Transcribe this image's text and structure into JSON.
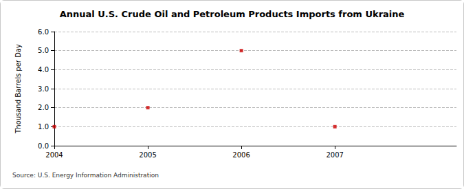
{
  "chart_data": {
    "type": "scatter",
    "title": "Annual U.S. Crude Oil and Petroleum Products Imports from Ukraine",
    "y_label": "Thousand Barrels per Day",
    "source": "Source: U.S. Energy Information Administration",
    "x": [
      2004,
      2005,
      2006,
      2007
    ],
    "values": [
      1,
      2,
      5,
      1
    ],
    "color": "#cc0000",
    "marker": "square",
    "xlim": [
      2004,
      2008.3
    ],
    "xticks": [
      2004,
      2005,
      2006,
      2007
    ],
    "ylim": [
      0,
      6
    ],
    "yticks": [
      {
        "value": 0,
        "label": "0.0"
      },
      {
        "value": 1,
        "label": "1.0"
      },
      {
        "value": 2,
        "label": "2.0"
      },
      {
        "value": 3,
        "label": "3.0"
      },
      {
        "value": 4,
        "label": "4.0"
      },
      {
        "value": 5,
        "label": "5.0"
      },
      {
        "value": 6,
        "label": "6.0"
      }
    ],
    "grid": true
  }
}
